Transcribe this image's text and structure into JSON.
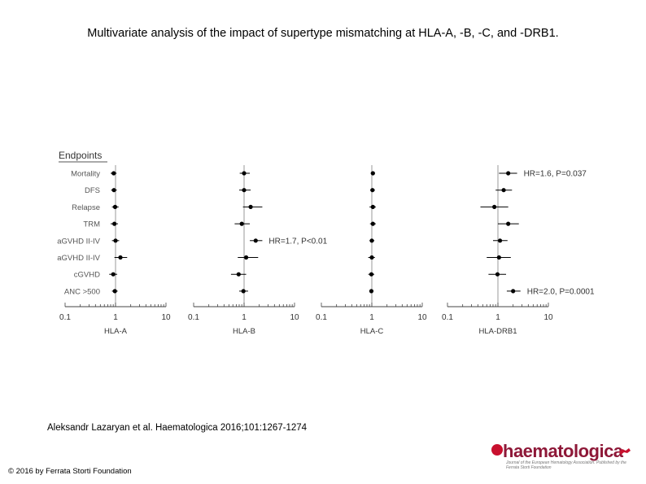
{
  "title": "Multivariate analysis of the impact of supertype mismatching at HLA-A, -B, -C, and -DRB1.",
  "citation": "Aleksandr Lazaryan et al. Haematologica 2016;101:1267-1274",
  "copyright": "© 2016 by Ferrata Storti Foundation",
  "logo": {
    "text": "haematologica",
    "subtitle": "Journal of the European Hematology Association. Published by the Ferrata Storti Foundation"
  },
  "chart_data": {
    "type": "forest",
    "endpoints_header": "Endpoints",
    "endpoints": [
      "Mortality",
      "DFS",
      "Relapse",
      "TRM",
      "aGVHD II-IV",
      "aGVHD II-IV",
      "cGVHD",
      "ANC >500"
    ],
    "x_scale": "log",
    "xlim": [
      0.1,
      10
    ],
    "reference_line": 1,
    "colors": {
      "marker": "#000000",
      "reference": "#999999",
      "text": "#333333"
    },
    "panels": [
      {
        "xlabel": "HLA-A",
        "tick_labels": [
          "0.1",
          "1",
          "10"
        ],
        "estimates": [
          {
            "hr": 0.92,
            "ci": [
              0.8,
              1.05
            ]
          },
          {
            "hr": 0.93,
            "ci": [
              0.82,
              1.06
            ]
          },
          {
            "hr": 0.98,
            "ci": [
              0.85,
              1.15
            ]
          },
          {
            "hr": 0.95,
            "ci": [
              0.8,
              1.12
            ]
          },
          {
            "hr": 1.0,
            "ci": [
              0.85,
              1.18
            ]
          },
          {
            "hr": 1.25,
            "ci": [
              0.95,
              1.7
            ]
          },
          {
            "hr": 0.9,
            "ci": [
              0.75,
              1.08
            ]
          },
          {
            "hr": 0.97,
            "ci": [
              0.85,
              1.1
            ]
          }
        ],
        "annotations": []
      },
      {
        "xlabel": "HLA-B",
        "tick_labels": [
          "0.1",
          "1",
          "10"
        ],
        "estimates": [
          {
            "hr": 1.0,
            "ci": [
              0.82,
              1.3
            ]
          },
          {
            "hr": 1.0,
            "ci": [
              0.8,
              1.35
            ]
          },
          {
            "hr": 1.35,
            "ci": [
              0.95,
              2.3
            ]
          },
          {
            "hr": 0.9,
            "ci": [
              0.65,
              1.3
            ]
          },
          {
            "hr": 1.7,
            "ci": [
              1.3,
              2.3
            ]
          },
          {
            "hr": 1.1,
            "ci": [
              0.75,
              1.9
            ]
          },
          {
            "hr": 0.78,
            "ci": [
              0.55,
              1.1
            ]
          },
          {
            "hr": 0.97,
            "ci": [
              0.8,
              1.2
            ]
          }
        ],
        "annotations": [
          {
            "row": 4,
            "text": "HR=1.7, P<0.01"
          }
        ]
      },
      {
        "xlabel": "HLA-C",
        "tick_labels": [
          "0.1",
          "1",
          "10"
        ],
        "estimates": [
          {
            "hr": 1.05,
            "ci": [
              0.95,
              1.15
            ]
          },
          {
            "hr": 1.03,
            "ci": [
              0.93,
              1.15
            ]
          },
          {
            "hr": 1.05,
            "ci": [
              0.9,
              1.2
            ]
          },
          {
            "hr": 1.05,
            "ci": [
              0.92,
              1.2
            ]
          },
          {
            "hr": 1.0,
            "ci": [
              0.9,
              1.12
            ]
          },
          {
            "hr": 1.0,
            "ci": [
              0.85,
              1.15
            ]
          },
          {
            "hr": 0.98,
            "ci": [
              0.85,
              1.12
            ]
          },
          {
            "hr": 0.98,
            "ci": [
              0.9,
              1.08
            ]
          }
        ],
        "annotations": []
      },
      {
        "xlabel": "HLA-DRB1",
        "tick_labels": [
          "0.1",
          "1",
          "10"
        ],
        "estimates": [
          {
            "hr": 1.6,
            "ci": [
              1.05,
              2.4
            ]
          },
          {
            "hr": 1.3,
            "ci": [
              0.9,
              1.9
            ]
          },
          {
            "hr": 0.85,
            "ci": [
              0.45,
              1.6
            ]
          },
          {
            "hr": 1.6,
            "ci": [
              1.0,
              2.6
            ]
          },
          {
            "hr": 1.1,
            "ci": [
              0.8,
              1.55
            ]
          },
          {
            "hr": 1.05,
            "ci": [
              0.6,
              1.8
            ]
          },
          {
            "hr": 0.98,
            "ci": [
              0.65,
              1.45
            ]
          },
          {
            "hr": 2.0,
            "ci": [
              1.5,
              2.8
            ]
          }
        ],
        "annotations": [
          {
            "row": 0,
            "text": "HR=1.6, P=0.037"
          },
          {
            "row": 7,
            "text": "HR=2.0, P=0.0001"
          }
        ]
      }
    ]
  }
}
